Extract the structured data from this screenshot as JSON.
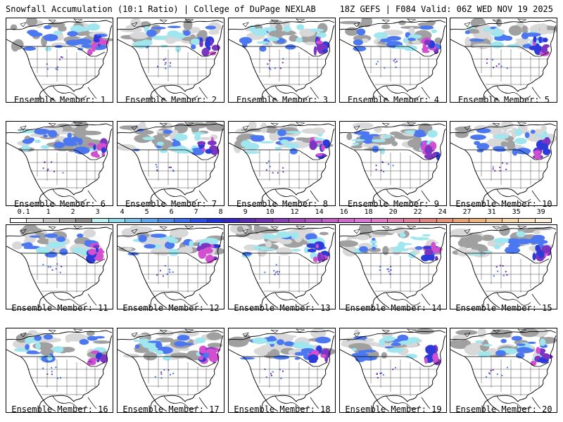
{
  "header": {
    "title": "Snowfall Accumulation (10:1 Ratio) | College of DuPage NEXLAB",
    "run_info": "18Z GEFS | F084 Valid: 06Z WED NOV 19 2025"
  },
  "members": [
    {
      "label": "Ensemble Member: 1"
    },
    {
      "label": "Ensemble Member: 2"
    },
    {
      "label": "Ensemble Member: 3"
    },
    {
      "label": "Ensemble Member: 4"
    },
    {
      "label": "Ensemble Member: 5"
    },
    {
      "label": "Ensemble Member: 6"
    },
    {
      "label": "Ensemble Member: 7"
    },
    {
      "label": "Ensemble Member: 8"
    },
    {
      "label": "Ensemble Member: 9"
    },
    {
      "label": "Ensemble Member: 10"
    },
    {
      "label": "Ensemble Member: 11"
    },
    {
      "label": "Ensemble Member: 12"
    },
    {
      "label": "Ensemble Member: 13"
    },
    {
      "label": "Ensemble Member: 14"
    },
    {
      "label": "Ensemble Member: 15"
    },
    {
      "label": "Ensemble Member: 16"
    },
    {
      "label": "Ensemble Member: 17"
    },
    {
      "label": "Ensemble Member: 18"
    },
    {
      "label": "Ensemble Member: 19"
    },
    {
      "label": "Ensemble Member: 20"
    }
  ],
  "color_scale": {
    "labels": [
      "0.1",
      "1",
      "2",
      "3",
      "4",
      "5",
      "6",
      "7",
      "8",
      "9",
      "10",
      "12",
      "14",
      "16",
      "18",
      "20",
      "22",
      "24",
      "27",
      "31",
      "35",
      "39"
    ],
    "colors": [
      "#ffffff",
      "#e4e4e4",
      "#c6c6c6",
      "#a8a8a8",
      "#8c8c8c",
      "#b9f1f3",
      "#8fdcf1",
      "#78c3ef",
      "#5ea7f2",
      "#4a8cf0",
      "#3a6ef0",
      "#2a4fe8",
      "#1f31d8",
      "#3b24c6",
      "#5a27b6",
      "#7330b4",
      "#8a3bb9",
      "#9f46be",
      "#b152c3",
      "#c45fcb",
      "#d26ad2",
      "#dd75da",
      "#e27cc8",
      "#e37cb0",
      "#e27f96",
      "#e38680",
      "#e59374",
      "#e9a36f",
      "#edb37b",
      "#f2c590",
      "#f6d5a8",
      "#f9e3c1",
      "#fcf0db"
    ]
  },
  "colors": {
    "snow_gray_light": "#d8d8d8",
    "snow_gray_dark": "#a0a0a0",
    "snow_cyan": "#9fe6ef",
    "snow_blue": "#4b78f0",
    "snow_darkblue": "#2b3ad8",
    "snow_purple": "#7b35c0",
    "snow_magenta": "#d24fd0"
  }
}
